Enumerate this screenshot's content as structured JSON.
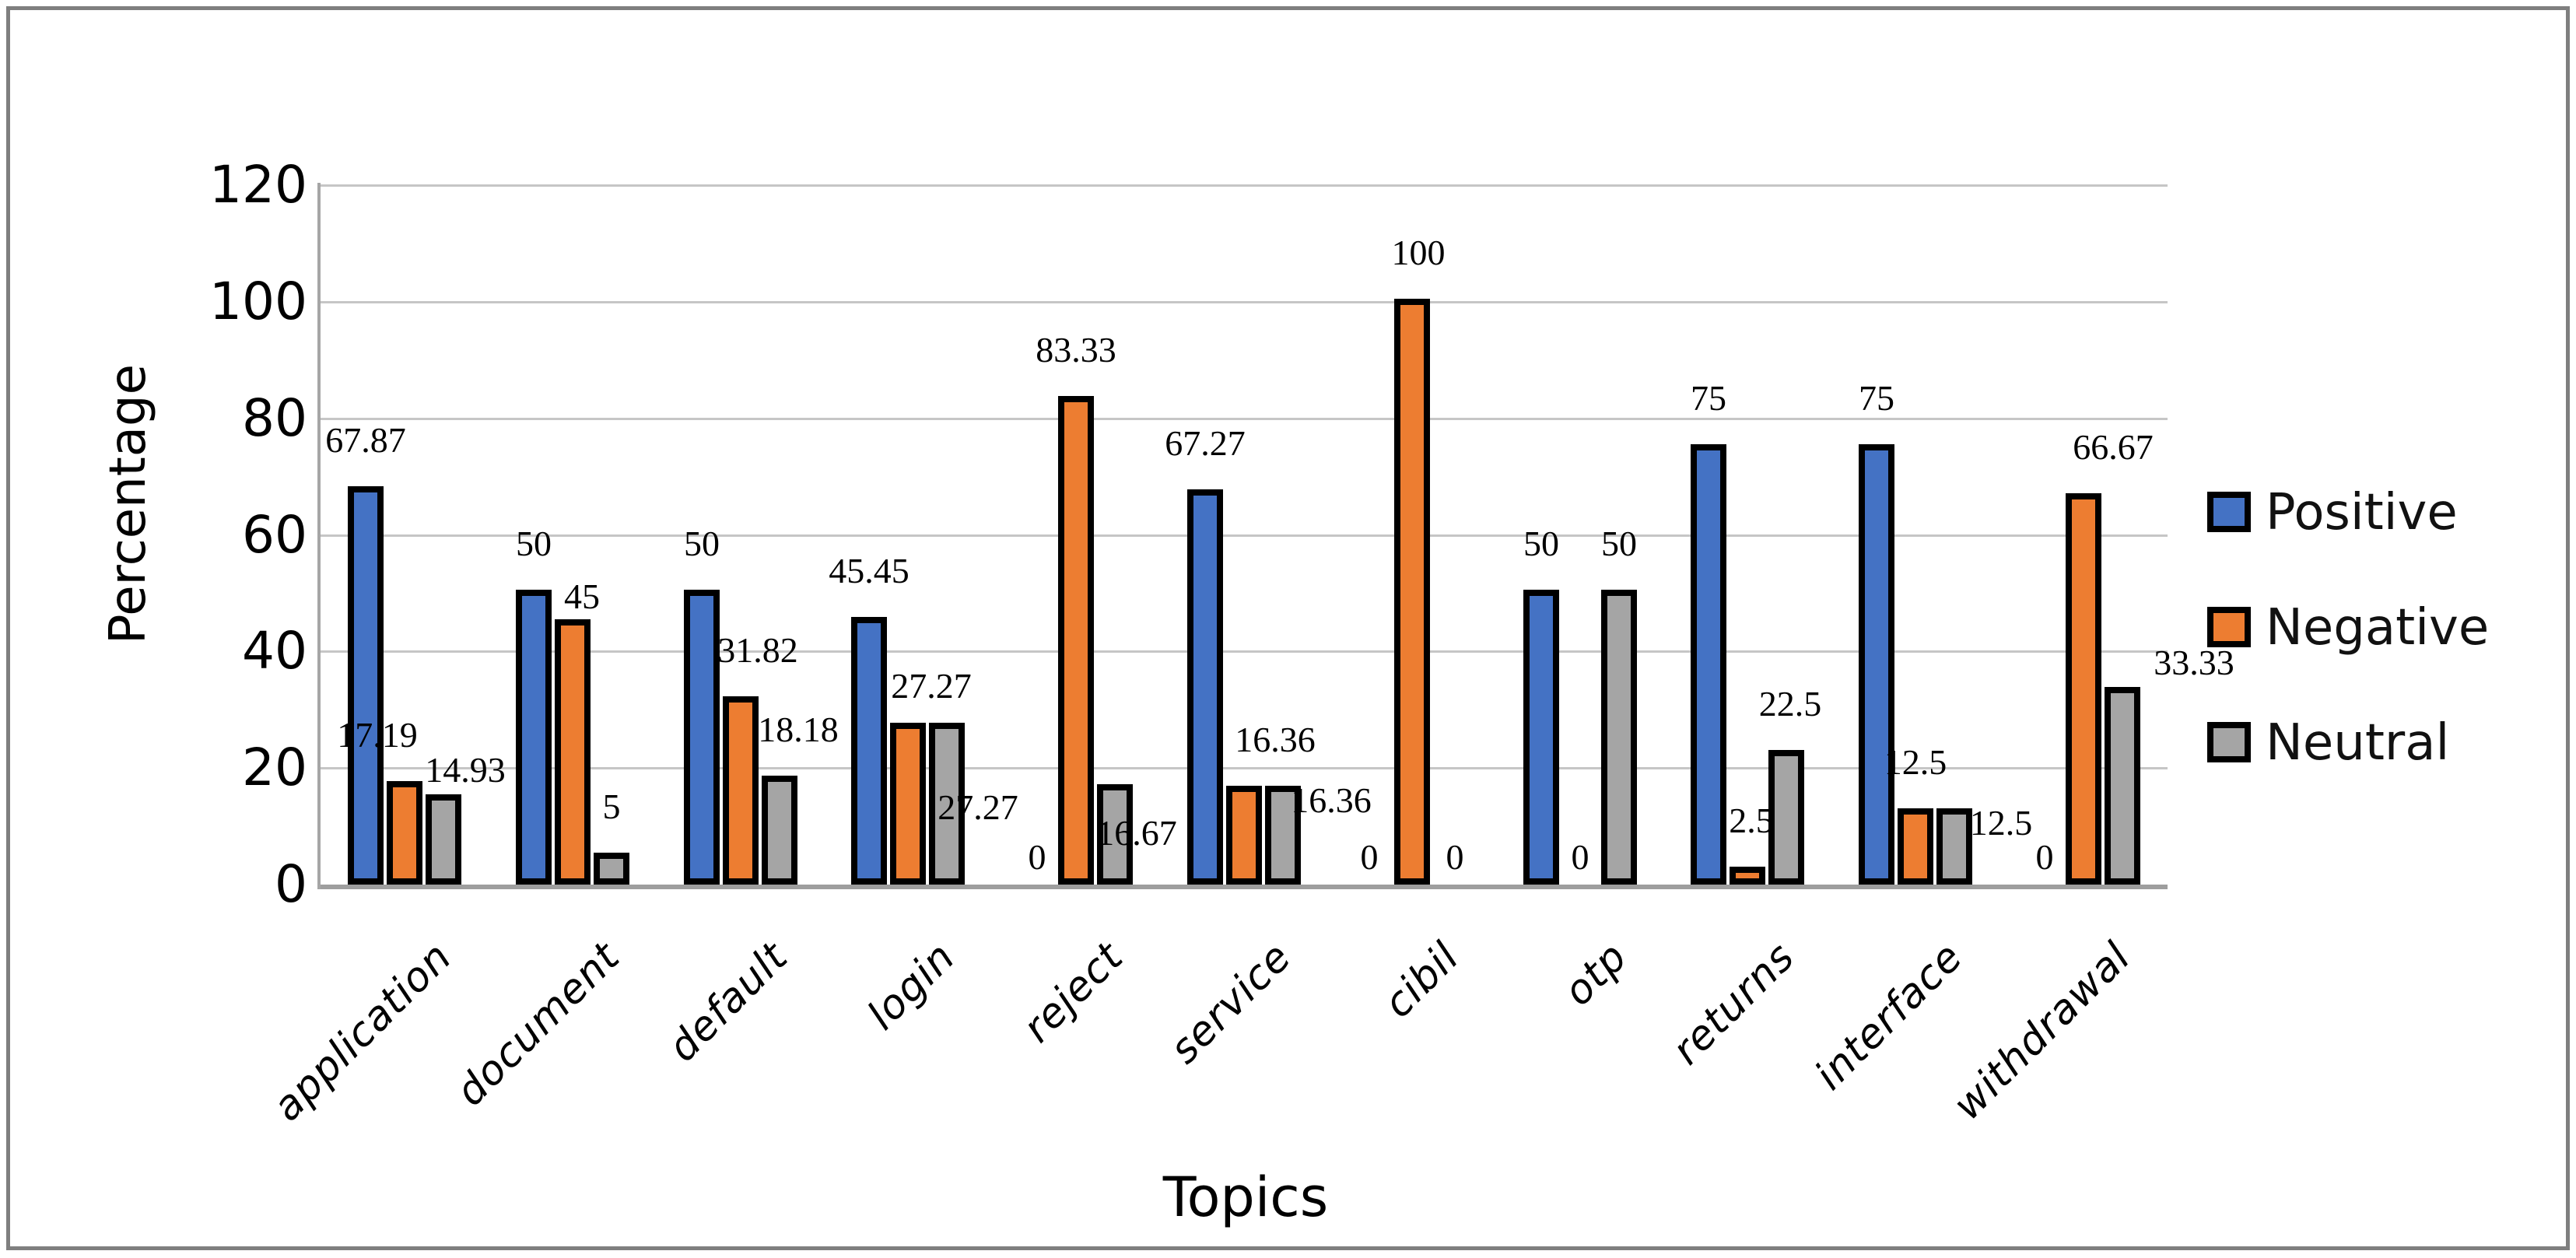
{
  "figure": {
    "background": "#ffffff",
    "border_color": "#7f7f7f"
  },
  "chart_data": {
    "type": "bar",
    "title": "",
    "xlabel": "Topics",
    "ylabel": "Percentage",
    "ylim": [
      0,
      120
    ],
    "yticks": [
      0,
      20,
      40,
      60,
      80,
      100,
      120
    ],
    "grid": "horizontal-on",
    "legend_position": "right",
    "categories": [
      "application",
      "document",
      "default",
      "login",
      "reject",
      "service",
      "cibil",
      "otp",
      "returns",
      "interface",
      "withdrawal"
    ],
    "series": [
      {
        "name": "Positive",
        "color": "#4472c4",
        "values": [
          67.87,
          50,
          50,
          45.45,
          0,
          67.27,
          0,
          50,
          75,
          75,
          0
        ]
      },
      {
        "name": "Negative",
        "color": "#ed7d31",
        "values": [
          17.19,
          45,
          31.82,
          27.27,
          83.33,
          16.36,
          100,
          0,
          2.5,
          12.5,
          66.67
        ]
      },
      {
        "name": "Neutral",
        "color": "#a5a5a5",
        "values": [
          14.93,
          5,
          18.18,
          27.27,
          16.67,
          16.36,
          0,
          50,
          22.5,
          12.5,
          33.33
        ]
      }
    ],
    "label_offsets": [
      [
        [
          0,
          0
        ],
        [
          0,
          0
        ],
        [
          0,
          0
        ],
        [
          0,
          0
        ],
        [
          0,
          0
        ],
        [
          0,
          0
        ],
        [
          -5,
          0
        ],
        [
          0,
          0
        ],
        [
          0,
          0
        ],
        [
          0,
          0
        ],
        [
          0,
          0
        ]
      ],
      [
        [
          -35,
          0
        ],
        [
          12,
          -30
        ],
        [
          22,
          0
        ],
        [
          30,
          -12
        ],
        [
          0,
          0
        ],
        [
          40,
          0
        ],
        [
          8,
          0
        ],
        [
          0,
          0
        ],
        [
          5,
          0
        ],
        [
          0,
          0
        ],
        [
          38,
          0
        ]
      ],
      [
        [
          28,
          -28
        ],
        [
          0,
          0
        ],
        [
          24,
          0
        ],
        [
          40,
          -168
        ],
        [
          28,
          -122
        ],
        [
          62,
          -78
        ],
        [
          5,
          0
        ],
        [
          0,
          0
        ],
        [
          5,
          0
        ],
        [
          60,
          -78
        ],
        [
          92,
          -28
        ]
      ]
    ]
  },
  "legend": {
    "items": [
      {
        "label": "Positive",
        "color": "#4472c4"
      },
      {
        "label": "Negative",
        "color": "#ed7d31"
      },
      {
        "label": "Neutral",
        "color": "#a5a5a5"
      }
    ]
  }
}
